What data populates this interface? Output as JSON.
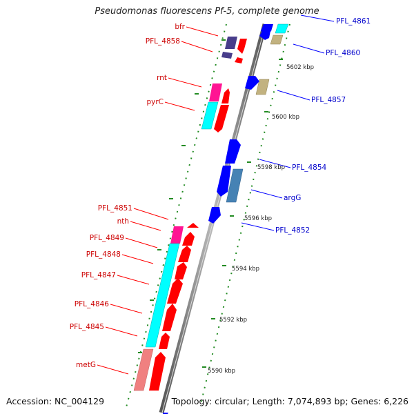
{
  "title": "Pseudomonas fluorescens Pf-5, complete genome",
  "footer": {
    "accession": "Accession: NC_004129",
    "stats": "Topology: circular; Length: 7,074,893 bp; Genes: 6,226"
  },
  "colors": {
    "strand_minus_label": "#cc0000",
    "strand_plus_label": "#0000cc",
    "cds_red": "#ff0000",
    "cds_blue": "#0000ff",
    "cog_cyan": "#00ffff",
    "cog_magenta": "#ff1493",
    "cog_khaki": "#c2b280",
    "cog_steelblue": "#4682b4",
    "cog_slate": "#483d8b",
    "cog_salmon": "#f08080",
    "backbone": "#888888",
    "tick": "#228b22"
  },
  "ruler_ticks": [
    "5602 kbp",
    "5600 kbp",
    "5598 kbp",
    "5596 kbp",
    "5594 kbp",
    "5592 kbp",
    "5590 kbp"
  ],
  "gene_labels_left": [
    "bfr",
    "PFL_4858",
    "rnt",
    "pyrC",
    "PFL_4851",
    "nth",
    "PFL_4849",
    "PFL_4848",
    "PFL_4847",
    "PFL_4846",
    "PFL_4845",
    "metG"
  ],
  "gene_labels_right": [
    "PFL_4861",
    "PFL_4860",
    "PFL_4857",
    "PFL_4854",
    "argG",
    "PFL_4852"
  ]
}
